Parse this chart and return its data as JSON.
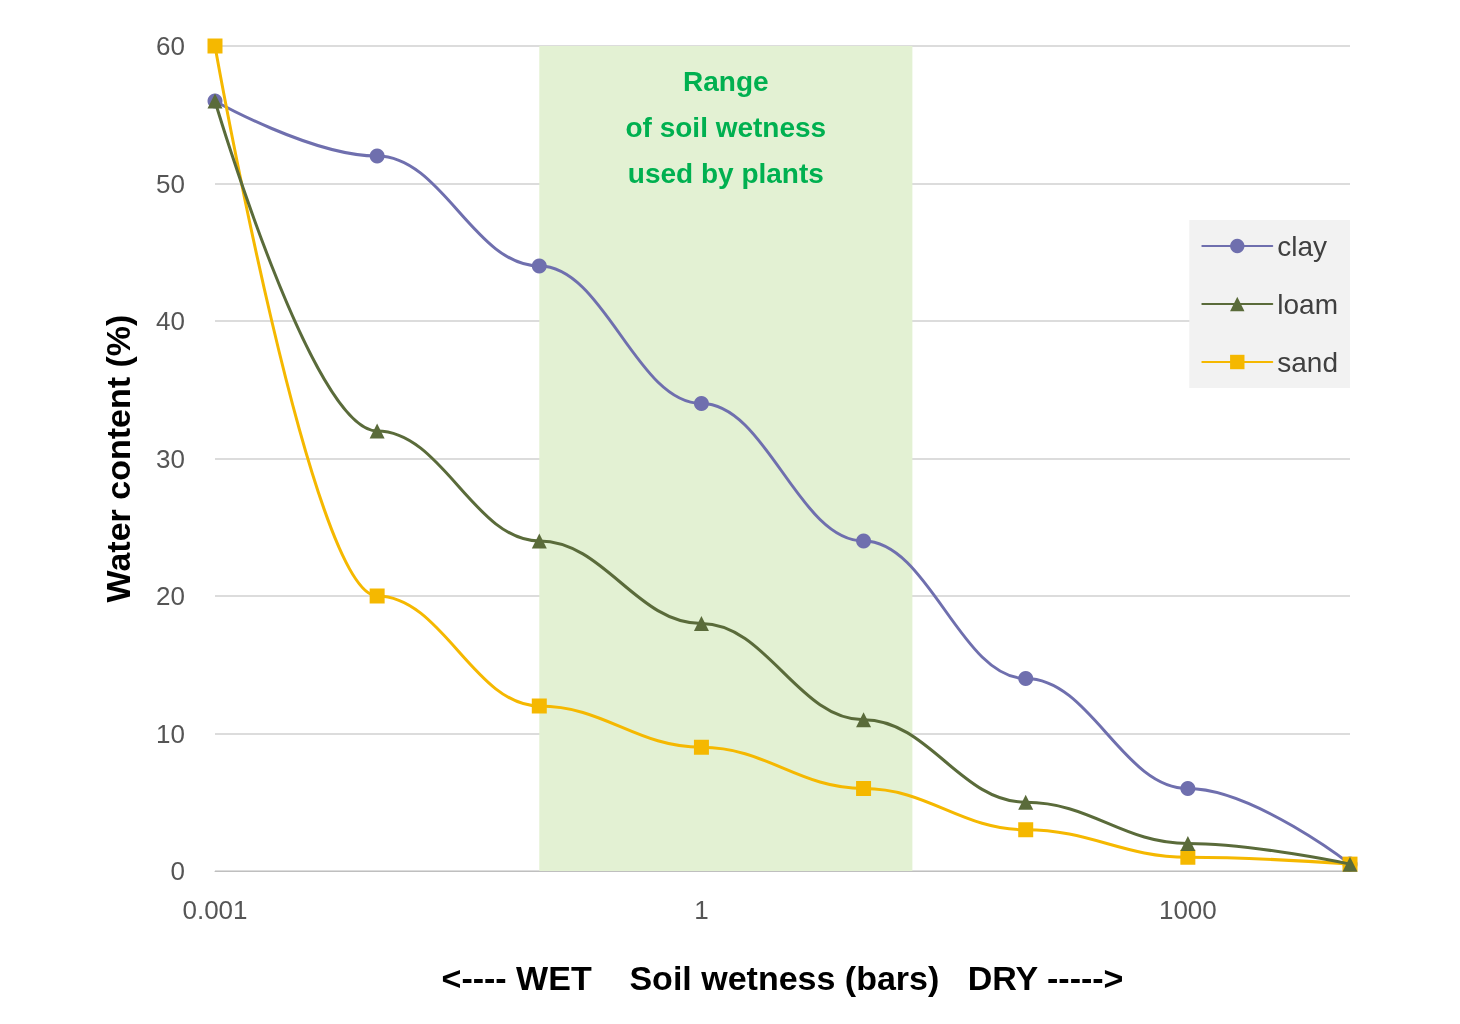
{
  "chart_data": {
    "type": "line",
    "xlabel": "<---- WET    Soil wetness (bars)   DRY ----->",
    "ylabel": "Water content (%)",
    "x": [
      0.001,
      0.01,
      0.1,
      1,
      10,
      100,
      1000,
      10000
    ],
    "series": [
      {
        "name": "clay",
        "color": "#6f6fae",
        "marker": "circle",
        "values": [
          56,
          52,
          44,
          34,
          24,
          14,
          6,
          0.5
        ]
      },
      {
        "name": "loam",
        "color": "#5a6b3a",
        "marker": "triangle",
        "values": [
          56,
          32,
          24,
          18,
          11,
          5,
          2,
          0.5
        ]
      },
      {
        "name": "sand",
        "color": "#f5b800",
        "marker": "square",
        "values": [
          60,
          20,
          12,
          9,
          6,
          3,
          1,
          0.5
        ]
      }
    ],
    "log": "x",
    "xlim": [
      0.001,
      10000
    ],
    "xticks": [
      0.001,
      1,
      1000
    ],
    "ylim": [
      0,
      60
    ],
    "yticks": [
      0,
      10,
      20,
      30,
      40,
      50,
      60
    ],
    "bands": [
      {
        "axis": "x",
        "from": 0.1,
        "to": 20,
        "label": "Range\nof soil wetness\nused by plants",
        "color": "#e3f1d3"
      }
    ],
    "grid": "y",
    "legend": "top right",
    "line_style": "solid"
  }
}
